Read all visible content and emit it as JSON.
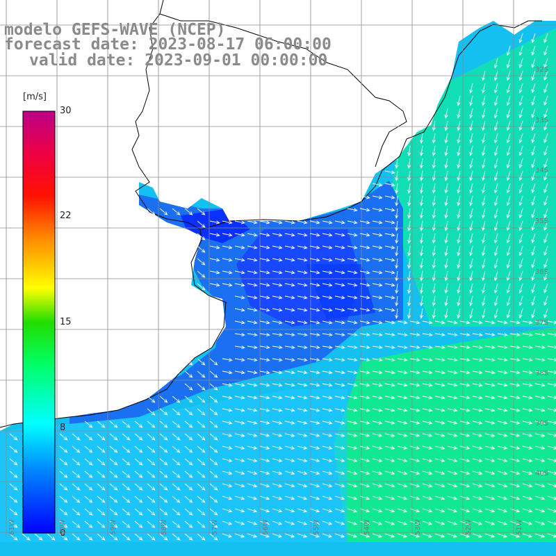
{
  "title": {
    "line1": "modelo GEFS-WAVE (NCEP)",
    "line2": "forecast date: 2023-08-17 06:00:00",
    "line3": "valid date: 2023-09-01 00:00:00"
  },
  "colorbar": {
    "unit": "[m/s]",
    "ticks": [
      "30",
      "22",
      "15",
      "8",
      "0"
    ],
    "min": 0,
    "max": 30,
    "colors": [
      "#0000ff",
      "#00aaff",
      "#00ffff",
      "#00ff66",
      "#00dd00",
      "#ffff00",
      "#ffaa00",
      "#ff3300",
      "#ff0000",
      "#cc0077"
    ]
  },
  "lat_labels": [
    "32S",
    "33S",
    "34S",
    "35S",
    "36S",
    "37S",
    "38S",
    "39S",
    "40S"
  ],
  "lon_labels": [
    "61W",
    "60W",
    "59W",
    "58W",
    "57W",
    "56W",
    "55W",
    "54W",
    "53W",
    "52W",
    "51W"
  ],
  "colors": {
    "land": "#ffffff",
    "coastline": "#000000",
    "grid": "#8a8a8a",
    "title": "#8a8a8a",
    "arrow": "#ffffff",
    "calm": "#0a3cff",
    "moderate": "#10c8f0",
    "strong": "#10f080"
  }
}
